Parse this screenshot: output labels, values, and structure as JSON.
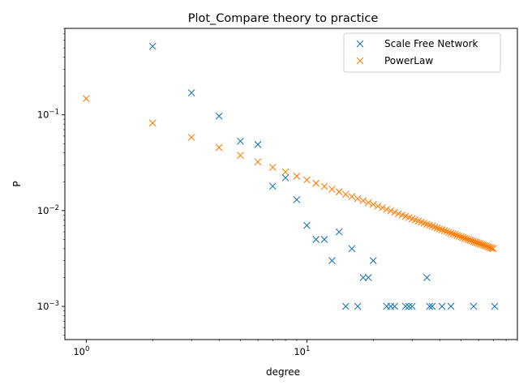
{
  "chart_data": {
    "type": "scatter",
    "title": "Plot_Compare theory to practice",
    "xlabel": "degree",
    "ylabel": "P",
    "xscale": "log",
    "yscale": "log",
    "xlim": [
      0.8,
      90
    ],
    "ylim": [
      0.00045,
      0.8
    ],
    "grid": false,
    "legend_position": "top-right",
    "marker": "x",
    "x_ticks": [
      {
        "value": 1,
        "label": "10^0"
      },
      {
        "value": 10,
        "label": "10^1"
      }
    ],
    "y_ticks": [
      {
        "value": 0.001,
        "label": "10^-3"
      },
      {
        "value": 0.01,
        "label": "10^-2"
      },
      {
        "value": 0.1,
        "label": "10^-1"
      }
    ],
    "series": [
      {
        "name": "Scale Free Network",
        "color": "#1f77b4",
        "points": [
          [
            2,
            0.52
          ],
          [
            3,
            0.17
          ],
          [
            4,
            0.097
          ],
          [
            5,
            0.053
          ],
          [
            6,
            0.049
          ],
          [
            7,
            0.018
          ],
          [
            8,
            0.022
          ],
          [
            9,
            0.013
          ],
          [
            10,
            0.007
          ],
          [
            11,
            0.005
          ],
          [
            12,
            0.005
          ],
          [
            13,
            0.003
          ],
          [
            14,
            0.006
          ],
          [
            15,
            0.001
          ],
          [
            16,
            0.004
          ],
          [
            17,
            0.001
          ],
          [
            18,
            0.002
          ],
          [
            19,
            0.002
          ],
          [
            20,
            0.003
          ],
          [
            23,
            0.001
          ],
          [
            24,
            0.001
          ],
          [
            25,
            0.001
          ],
          [
            28,
            0.001
          ],
          [
            29,
            0.001
          ],
          [
            30,
            0.001
          ],
          [
            35,
            0.002
          ],
          [
            36,
            0.001
          ],
          [
            37,
            0.001
          ],
          [
            41,
            0.001
          ],
          [
            45,
            0.001
          ],
          [
            57,
            0.001
          ],
          [
            71,
            0.001
          ]
        ]
      },
      {
        "name": "PowerLaw",
        "color": "#ff7f0e",
        "formula_x_range": [
          1,
          70
        ],
        "y_at_1": 0.148,
        "exponent": -0.85
      }
    ]
  }
}
